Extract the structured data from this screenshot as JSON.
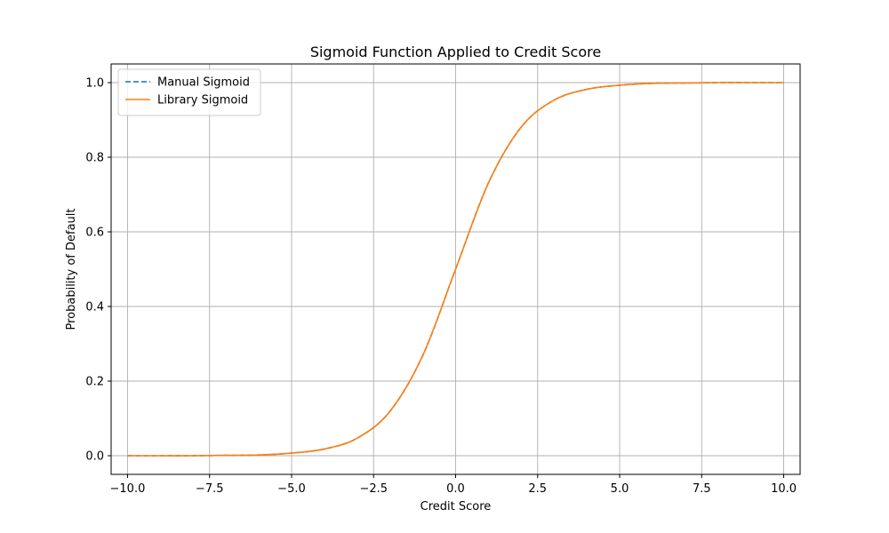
{
  "chart_data": {
    "type": "line",
    "title": "Sigmoid Function Applied to Credit Score",
    "xlabel": "Credit Score",
    "ylabel": "Probability of Default",
    "xlim": [
      -10.5,
      10.5
    ],
    "ylim": [
      -0.05,
      1.05
    ],
    "xticks": [
      -10.0,
      -7.5,
      -5.0,
      -2.5,
      0.0,
      2.5,
      5.0,
      7.5,
      10.0
    ],
    "xtick_labels": [
      "−10.0",
      "−7.5",
      "−5.0",
      "−2.5",
      "0.0",
      "2.5",
      "5.0",
      "7.5",
      "10.0"
    ],
    "yticks": [
      0.0,
      0.2,
      0.4,
      0.6,
      0.8,
      1.0
    ],
    "ytick_labels": [
      "0.0",
      "0.2",
      "0.4",
      "0.6",
      "0.8",
      "1.0"
    ],
    "grid": true,
    "legend_position": "upper-left",
    "x": [
      -10,
      -9,
      -8,
      -7,
      -6,
      -5,
      -4,
      -3,
      -2,
      -1,
      0,
      1,
      2,
      3,
      4,
      5,
      6,
      7,
      8,
      9,
      10
    ],
    "series": [
      {
        "name": "Manual Sigmoid",
        "color": "#1f77b4",
        "linestyle": "dashed",
        "values": [
          0.0,
          0.0,
          0.0,
          0.001,
          0.002,
          0.007,
          0.018,
          0.047,
          0.119,
          0.269,
          0.5,
          0.731,
          0.881,
          0.953,
          0.982,
          0.993,
          0.998,
          0.999,
          1.0,
          1.0,
          1.0
        ]
      },
      {
        "name": "Library Sigmoid",
        "color": "#ff7f0e",
        "linestyle": "solid",
        "values": [
          0.0,
          0.0,
          0.0,
          0.001,
          0.002,
          0.007,
          0.018,
          0.047,
          0.119,
          0.269,
          0.5,
          0.731,
          0.881,
          0.953,
          0.982,
          0.993,
          0.998,
          0.999,
          1.0,
          1.0,
          1.0
        ]
      }
    ]
  }
}
